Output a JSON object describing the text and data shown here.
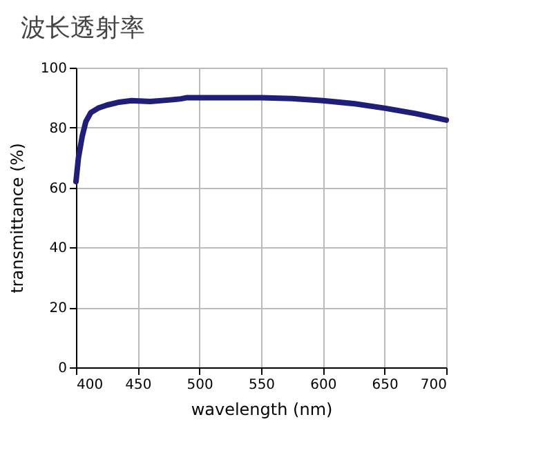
{
  "chart_data": {
    "type": "line",
    "title": "波长透射率",
    "xlabel": "wavelength (nm)",
    "ylabel": "transmittance (%)",
    "x": [
      400,
      402,
      405,
      408,
      412,
      418,
      425,
      435,
      445,
      460,
      475,
      485,
      490,
      500,
      525,
      550,
      575,
      600,
      625,
      650,
      675,
      700
    ],
    "series": [
      {
        "color": "#1f1f7a",
        "values": [
          62,
          70,
          77,
          82,
          85,
          86.5,
          87.5,
          88.5,
          89,
          88.7,
          89.2,
          89.6,
          90,
          90,
          90,
          90,
          89.7,
          89,
          88,
          86.5,
          84.7,
          82.5
        ]
      }
    ],
    "xlim": [
      400,
      700
    ],
    "xticks": [
      400,
      450,
      500,
      550,
      600,
      650,
      700
    ],
    "ylim": [
      0,
      100
    ],
    "yticks": [
      0,
      20,
      40,
      60,
      80,
      100
    ],
    "grid": true,
    "marker": "none",
    "line_style": "solid"
  }
}
